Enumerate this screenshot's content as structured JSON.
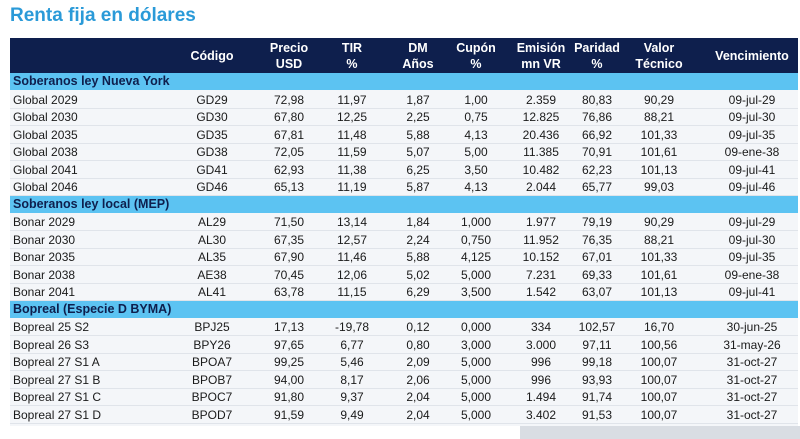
{
  "header": {
    "title": "Renta fija en dólares"
  },
  "table": {
    "columns": [
      [
        "Código"
      ],
      [
        "Precio",
        "USD"
      ],
      [
        "TIR",
        "%"
      ],
      [
        "DM",
        "Años"
      ],
      [
        "Cupón",
        "%"
      ],
      [
        "Emisión",
        "mn VR"
      ],
      [
        "Paridad",
        "%"
      ],
      [
        "Valor",
        "Técnico"
      ],
      [
        "Vencimiento"
      ]
    ],
    "sections": [
      {
        "title": "Soberanos ley Nueva York",
        "rows": [
          [
            "Global 2029",
            "GD29",
            "72,98",
            "11,97",
            "1,87",
            "1,00",
            "2.359",
            "80,83",
            "90,29",
            "09-jul-29"
          ],
          [
            "Global 2030",
            "GD30",
            "67,80",
            "12,25",
            "2,25",
            "0,75",
            "12.825",
            "76,86",
            "88,21",
            "09-jul-30"
          ],
          [
            "Global 2035",
            "GD35",
            "67,81",
            "11,48",
            "5,88",
            "4,13",
            "20.436",
            "66,92",
            "101,33",
            "09-jul-35"
          ],
          [
            "Global 2038",
            "GD38",
            "72,05",
            "11,59",
            "5,07",
            "5,00",
            "11.385",
            "70,91",
            "101,61",
            "09-ene-38"
          ],
          [
            "Global 2041",
            "GD41",
            "62,93",
            "11,38",
            "6,25",
            "3,50",
            "10.482",
            "62,23",
            "101,13",
            "09-jul-41"
          ],
          [
            "Global 2046",
            "GD46",
            "65,13",
            "11,19",
            "5,87",
            "4,13",
            "2.044",
            "65,77",
            "99,03",
            "09-jul-46"
          ]
        ]
      },
      {
        "title": "Soberanos ley local (MEP)",
        "rows": [
          [
            "Bonar 2029",
            "AL29",
            "71,50",
            "13,14",
            "1,84",
            "1,000",
            "1.977",
            "79,19",
            "90,29",
            "09-jul-29"
          ],
          [
            "Bonar 2030",
            "AL30",
            "67,35",
            "12,57",
            "2,24",
            "0,750",
            "11.952",
            "76,35",
            "88,21",
            "09-jul-30"
          ],
          [
            "Bonar 2035",
            "AL35",
            "67,90",
            "11,46",
            "5,88",
            "4,125",
            "10.152",
            "67,01",
            "101,33",
            "09-jul-35"
          ],
          [
            "Bonar 2038",
            "AE38",
            "70,45",
            "12,06",
            "5,02",
            "5,000",
            "7.231",
            "69,33",
            "101,61",
            "09-ene-38"
          ],
          [
            "Bonar 2041",
            "AL41",
            "63,78",
            "11,15",
            "6,29",
            "3,500",
            "1.542",
            "63,07",
            "101,13",
            "09-jul-41"
          ]
        ]
      },
      {
        "title": "Bopreal (Especie D BYMA)",
        "rows": [
          [
            "Bopreal 25 S2",
            "BPJ25",
            "17,13",
            "-19,78",
            "0,12",
            "0,000",
            "334",
            "102,57",
            "16,70",
            "30-jun-25"
          ],
          [
            "Bopreal 26 S3",
            "BPY26",
            "97,65",
            "6,77",
            "0,80",
            "3,000",
            "3.000",
            "97,11",
            "100,56",
            "31-may-26"
          ],
          [
            "Bopreal 27 S1 A",
            "BPOA7",
            "99,25",
            "5,46",
            "2,09",
            "5,000",
            "996",
            "99,18",
            "100,07",
            "31-oct-27"
          ],
          [
            "Bopreal 27 S1 B",
            "BPOB7",
            "94,00",
            "8,17",
            "2,06",
            "5,000",
            "996",
            "93,93",
            "100,07",
            "31-oct-27"
          ],
          [
            "Bopreal 27 S1 C",
            "BPOC7",
            "91,80",
            "9,37",
            "2,04",
            "5,000",
            "1.494",
            "91,74",
            "100,07",
            "31-oct-27"
          ],
          [
            "Bopreal 27 S1 D",
            "BPOD7",
            "91,59",
            "9,49",
            "2,04",
            "5,000",
            "3.402",
            "91,53",
            "100,07",
            "31-oct-27"
          ]
        ]
      }
    ]
  }
}
